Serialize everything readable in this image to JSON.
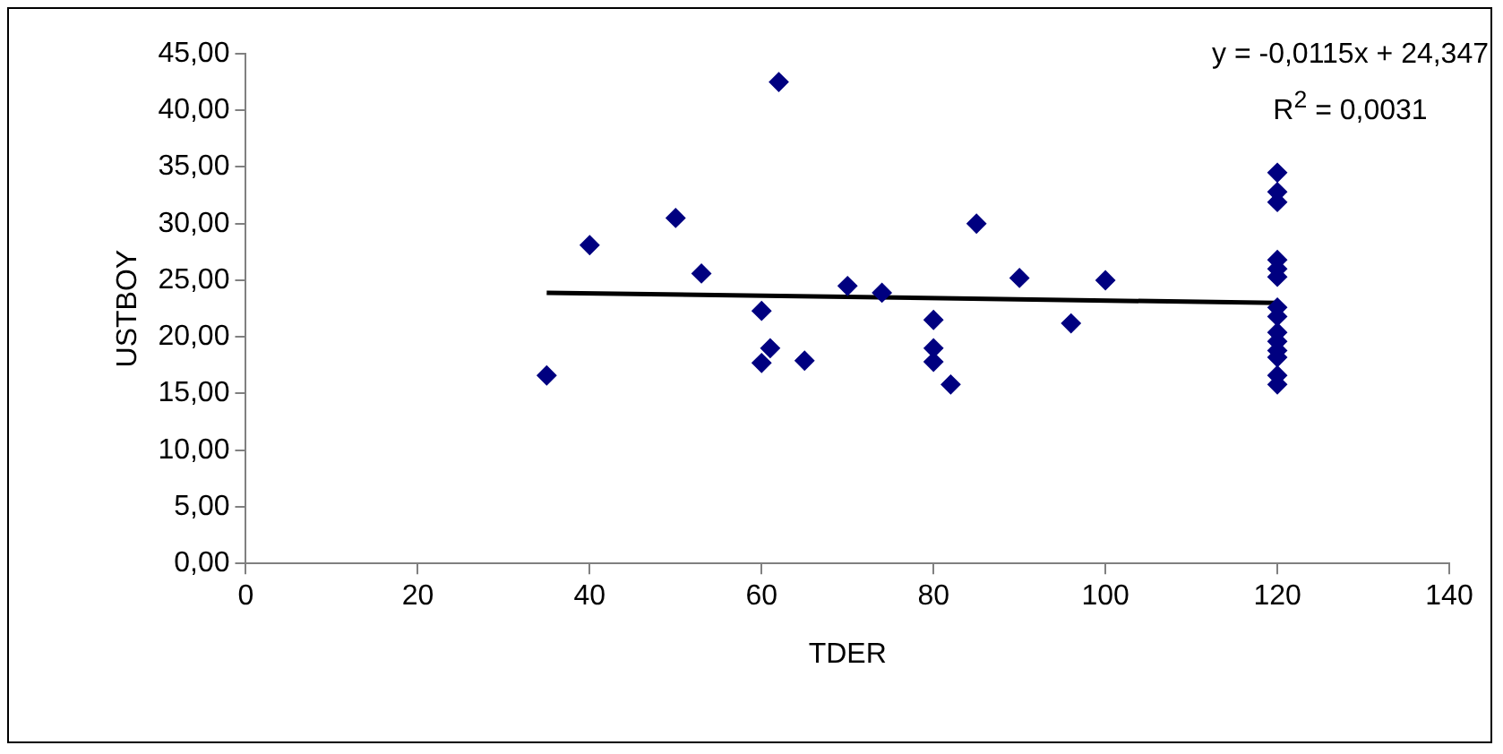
{
  "chart_data": {
    "type": "scatter",
    "xlabel": "TDER",
    "ylabel": "USTBOY",
    "marker": "diamond",
    "grid": false,
    "legend": false,
    "xlim": [
      0,
      140
    ],
    "xticks": [
      0,
      20,
      40,
      60,
      80,
      100,
      120,
      140
    ],
    "ylim": [
      0,
      45
    ],
    "yticks": [
      {
        "value": 0,
        "label": "0,00"
      },
      {
        "value": 5,
        "label": "5,00"
      },
      {
        "value": 10,
        "label": "10,00"
      },
      {
        "value": 15,
        "label": "15,00"
      },
      {
        "value": 20,
        "label": "20,00"
      },
      {
        "value": 25,
        "label": "25,00"
      },
      {
        "value": 30,
        "label": "30,00"
      },
      {
        "value": 35,
        "label": "35,00"
      },
      {
        "value": 40,
        "label": "40,00"
      },
      {
        "value": 45,
        "label": "45,00"
      }
    ],
    "annotations": [
      "y = -0,0115x + 24,347",
      "R$^{2}$ = 0,0031"
    ],
    "series": [
      {
        "color": "#000080",
        "x": [
          35,
          40,
          50,
          53,
          60,
          60,
          61,
          62,
          65,
          70,
          74,
          80,
          80,
          80,
          82,
          85,
          90,
          96,
          100,
          120,
          120,
          120,
          120,
          120,
          120,
          120,
          120,
          120,
          120,
          120,
          120,
          120,
          120
        ],
        "values": [
          16.6,
          28.1,
          30.5,
          25.6,
          22.3,
          17.7,
          19.0,
          42.5,
          17.9,
          24.5,
          23.9,
          21.5,
          19.0,
          17.8,
          15.8,
          30.0,
          25.2,
          21.2,
          25.0,
          34.5,
          32.8,
          31.9,
          26.8,
          26.0,
          25.3,
          22.6,
          21.8,
          20.4,
          19.6,
          18.8,
          18.2,
          16.6,
          15.8
        ]
      },
      {
        "type": "line",
        "color": "#000000",
        "marker": "none",
        "x": [
          35,
          120
        ],
        "values": [
          23.9,
          23.0
        ]
      }
    ]
  }
}
